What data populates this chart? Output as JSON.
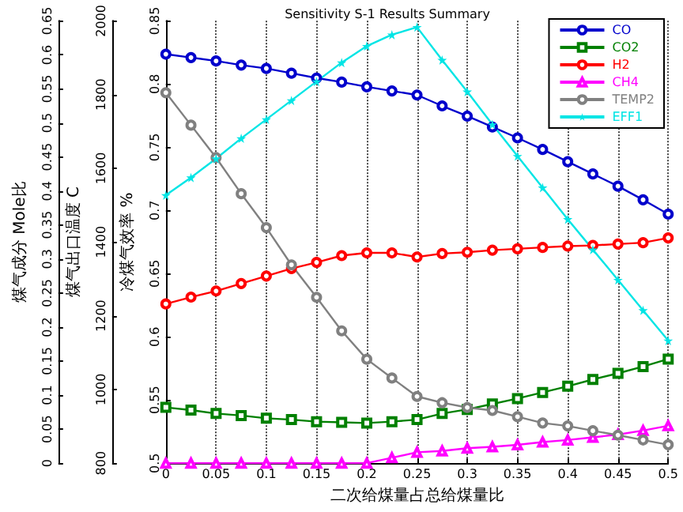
{
  "chart_data": {
    "type": "line",
    "title": "Sensitivity S-1 Results Summary",
    "xlabel": "二次给煤量占总给煤量比",
    "ylabel": "煤气成分 Mole比",
    "y2label": "煤气出口温度 C",
    "y3label": "冷煤气效率 %",
    "x": [
      0,
      0.025,
      0.05,
      0.075,
      0.1,
      0.125,
      0.15,
      0.175,
      0.2,
      0.225,
      0.25,
      0.275,
      0.3,
      0.325,
      0.35,
      0.375,
      0.4,
      0.425,
      0.45,
      0.475,
      0.5
    ],
    "xlim": [
      0,
      0.5
    ],
    "xticks": [
      0,
      0.05,
      0.1,
      0.15,
      0.2,
      0.25,
      0.3,
      0.35,
      0.4,
      0.45,
      0.5
    ],
    "ylim": [
      0,
      0.65
    ],
    "yticks": [
      0,
      0.05,
      0.1,
      0.15,
      0.2,
      0.25,
      0.3,
      0.35,
      0.4,
      0.45,
      0.5,
      0.55,
      0.6,
      0.65
    ],
    "y2lim": [
      800,
      2000
    ],
    "y2ticks": [
      800,
      1000,
      1200,
      1400,
      1600,
      1800,
      2000
    ],
    "y3lim": [
      0.5,
      0.85
    ],
    "y3ticks": [
      0.5,
      0.55,
      0.6,
      0.65,
      0.7,
      0.75,
      0.8,
      0.85
    ],
    "grid": "x",
    "legend": "top right",
    "line_style": "solid",
    "series": [
      {
        "name": "CO",
        "color": "#0000cc",
        "marker": "circle",
        "values": [
          0.601,
          0.596,
          0.591,
          0.585,
          0.58,
          0.573,
          0.566,
          0.56,
          0.553,
          0.547,
          0.541,
          0.525,
          0.51,
          0.494,
          0.478,
          0.461,
          0.443,
          0.425,
          0.407,
          0.387,
          0.366
        ]
      },
      {
        "name": "CO2",
        "color": "#008000",
        "marker": "square",
        "values": [
          0.082,
          0.078,
          0.073,
          0.07,
          0.066,
          0.064,
          0.061,
          0.06,
          0.059,
          0.061,
          0.064,
          0.073,
          0.079,
          0.087,
          0.095,
          0.104,
          0.113,
          0.123,
          0.132,
          0.142,
          0.153
        ]
      },
      {
        "name": "H2",
        "color": "#ff0000",
        "marker": "circle",
        "values": [
          0.234,
          0.244,
          0.253,
          0.264,
          0.275,
          0.286,
          0.295,
          0.305,
          0.309,
          0.309,
          0.303,
          0.308,
          0.31,
          0.313,
          0.315,
          0.317,
          0.319,
          0.32,
          0.322,
          0.324,
          0.331
        ]
      },
      {
        "name": "CH4",
        "color": "#ff00ff",
        "marker": "triangle",
        "values": [
          0,
          0,
          0,
          0,
          0,
          0,
          0,
          0,
          0,
          0.008,
          0.016,
          0.018,
          0.022,
          0.024,
          0.027,
          0.031,
          0.034,
          0.038,
          0.042,
          0.048,
          0.055
        ]
      },
      {
        "name": "TEMP2",
        "color": "#808080",
        "marker": "circle",
        "axis": "y2",
        "values": [
          1805,
          1717,
          1629,
          1531,
          1439,
          1338,
          1250,
          1159,
          1082,
          1031,
          981,
          964,
          951,
          943,
          926,
          909,
          901,
          888,
          876,
          863,
          850
        ]
      },
      {
        "name": "EFF1",
        "color": "#00e5e5",
        "marker": "star",
        "axis": "y3",
        "values": [
          0.712,
          0.726,
          0.741,
          0.757,
          0.772,
          0.787,
          0.802,
          0.817,
          0.83,
          0.839,
          0.845,
          0.819,
          0.794,
          0.768,
          0.743,
          0.718,
          0.693,
          0.669,
          0.645,
          0.621,
          0.597
        ]
      }
    ]
  }
}
